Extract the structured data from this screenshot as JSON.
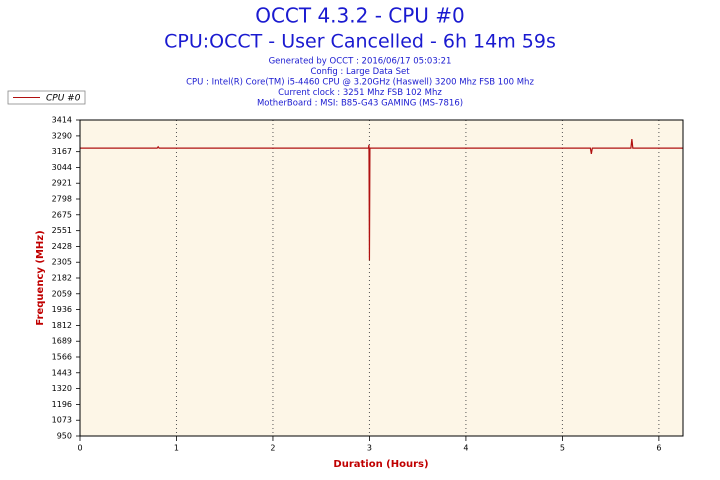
{
  "chart_data": {
    "type": "line",
    "title": "OCCT 4.3.2 - CPU #0",
    "subtitle": "CPU:OCCT - User Cancelled - 6h 14m 59s",
    "info_lines": [
      "Generated by OCCT : 2016/06/17 05:03:21",
      "Config : Large Data Set",
      "CPU : Intel(R) Core(TM) i5-4460 CPU @ 3.20GHz (Haswell) 3200 Mhz FSB 100 Mhz",
      "Current clock : 3251 Mhz FSB 102 Mhz",
      "MotherBoard : MSI: B85-G43 GAMING (MS-7816)"
    ],
    "x_label": "Duration (Hours)",
    "y_label": "Frequency (MHz)",
    "x": [
      0,
      0.8,
      0.81,
      0.82,
      2.99,
      2.995,
      3.0,
      3.005,
      5.29,
      5.3,
      5.31,
      5.71,
      5.72,
      5.73,
      6.25
    ],
    "series": [
      {
        "name": "CPU #0",
        "color": "#b01010",
        "values": [
          3195,
          3195,
          3205,
          3195,
          3195,
          3220,
          2320,
          3195,
          3195,
          3150,
          3195,
          3195,
          3265,
          3195,
          3195
        ]
      }
    ],
    "xlim": [
      0,
      6.25
    ],
    "xticks": [
      0,
      1,
      2,
      3,
      4,
      5,
      6
    ],
    "ylim": [
      950,
      3414
    ],
    "yticks": [
      950,
      1073,
      1196,
      1320,
      1443,
      1566,
      1689,
      1812,
      1936,
      2059,
      2182,
      2305,
      2428,
      2551,
      2675,
      2798,
      2921,
      3044,
      3167,
      3290,
      3414
    ],
    "grid": "x",
    "legend": "top-left",
    "background": "#fdf6e7"
  }
}
